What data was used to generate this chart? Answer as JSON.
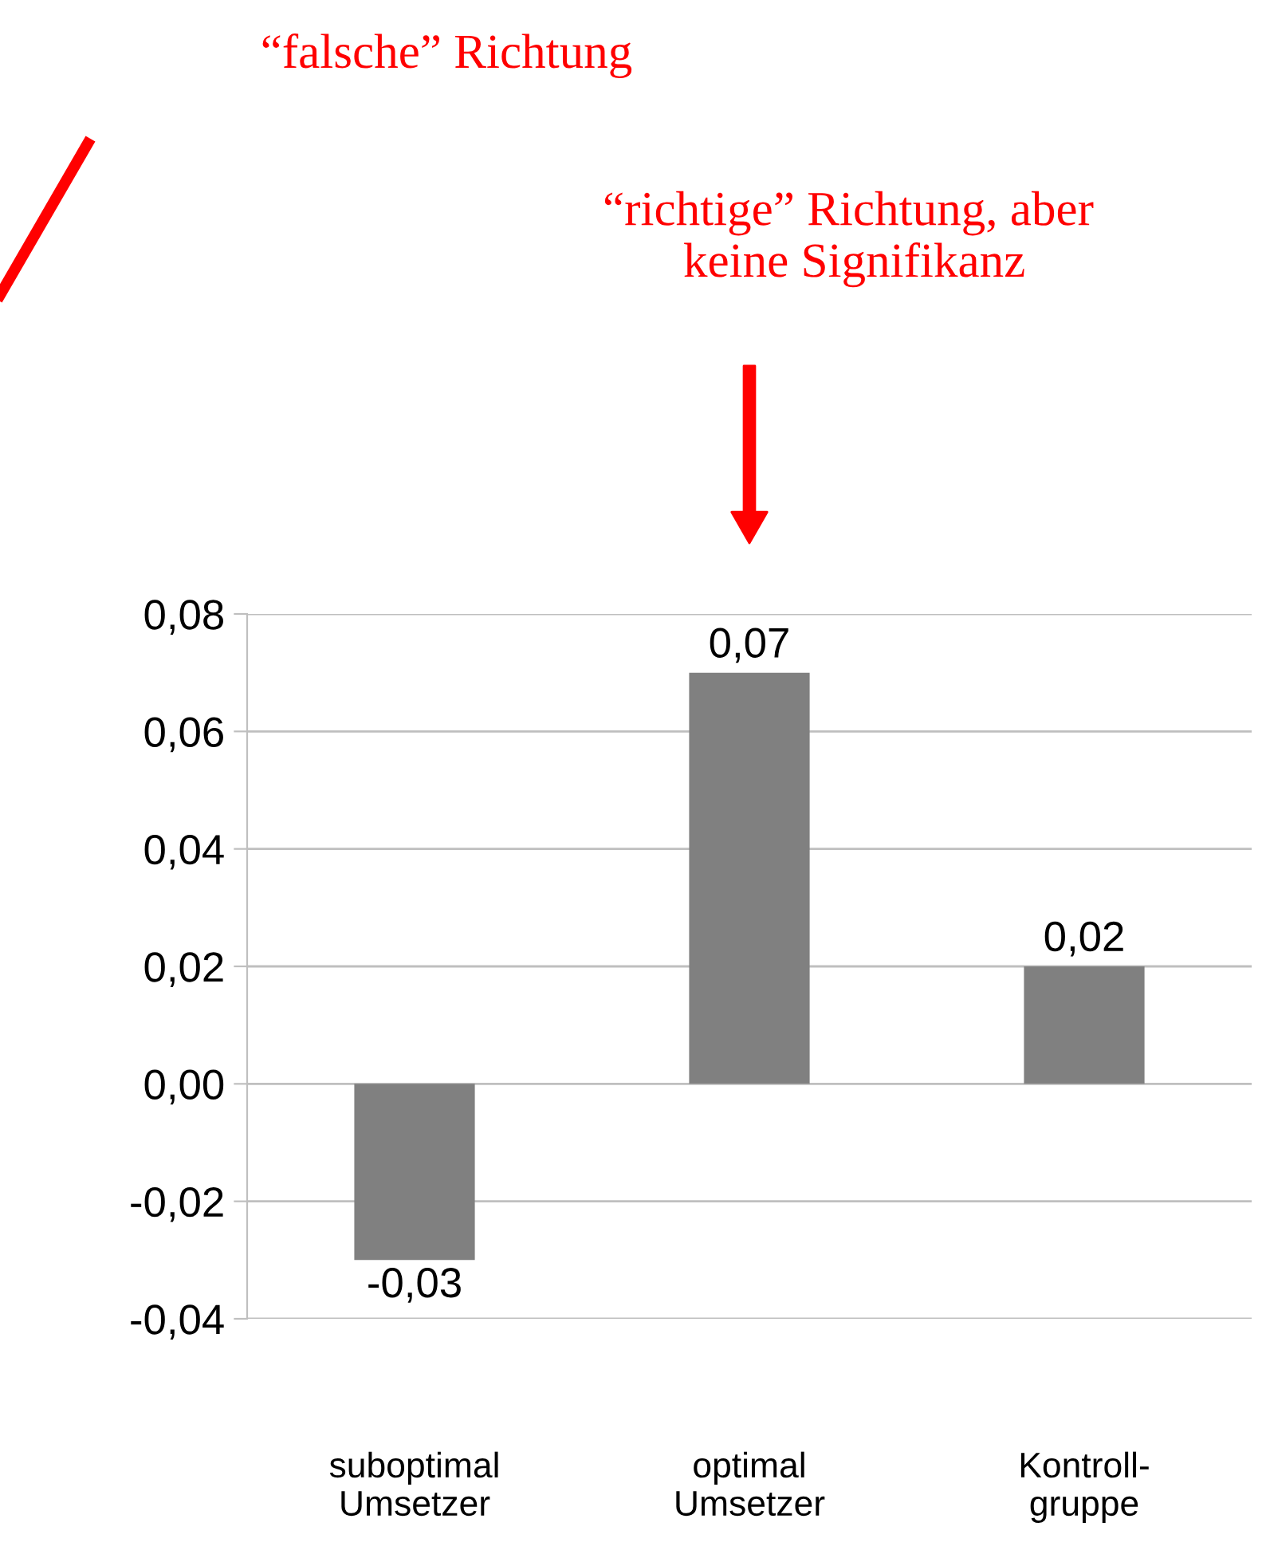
{
  "chart_data": {
    "type": "bar",
    "categories": [
      "suboptimal\nUmsetzer",
      "optimal\nUmsetzer",
      "Kontroll-\ngruppe"
    ],
    "values": [
      -0.03,
      0.07,
      0.02
    ],
    "value_labels": [
      "-0,03",
      "0,07",
      "0,02"
    ],
    "color": "#808080",
    "ylim": [
      -0.04,
      0.08
    ],
    "yticks": [
      {
        "value": -0.04,
        "label": "-0,04"
      },
      {
        "value": -0.02,
        "label": "-0,02"
      },
      {
        "value": 0,
        "label": "0,00"
      },
      {
        "value": 0.02,
        "label": "0,02"
      },
      {
        "value": 0.04,
        "label": "0,04"
      },
      {
        "value": 0.06,
        "label": "0,06"
      },
      {
        "value": 0.08,
        "label": "0,08"
      }
    ],
    "grid": "y",
    "annotations": [
      "“falsche” Richtung",
      "“richtige” Richtung, aber\n keine Signifikanz"
    ]
  }
}
